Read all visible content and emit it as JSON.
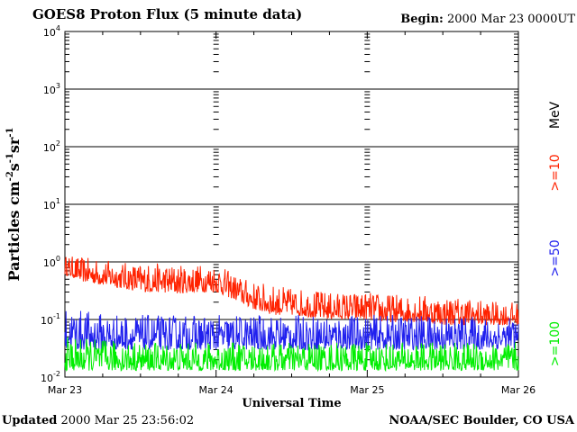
{
  "header": {
    "title": "GOES8 Proton Flux (5 minute data)",
    "begin_label": "Begin:",
    "begin_value": "2000 Mar 23 0000UT"
  },
  "footer": {
    "updated_label": "Updated",
    "updated_value": "2000 Mar 25 23:56:02",
    "credit": "NOAA/SEC Boulder, CO USA"
  },
  "chart_data": {
    "type": "line",
    "xlabel": "Universal Time",
    "ylabel_parts": [
      "Particles cm",
      "-2",
      "s",
      "-1",
      "sr",
      "-1"
    ],
    "y_scale": "log",
    "ylim": [
      0.01,
      10000
    ],
    "y_ticks": [
      {
        "value": 0.01,
        "base": "10",
        "exp": "-2"
      },
      {
        "value": 0.1,
        "base": "10",
        "exp": "-1"
      },
      {
        "value": 1,
        "base": "10",
        "exp": "0"
      },
      {
        "value": 10,
        "base": "10",
        "exp": "1"
      },
      {
        "value": 100,
        "base": "10",
        "exp": "2"
      },
      {
        "value": 1000,
        "base": "10",
        "exp": "3"
      },
      {
        "value": 10000,
        "base": "10",
        "exp": "4"
      }
    ],
    "x_ticks": [
      "Mar 23",
      "Mar 24",
      "Mar 25",
      "Mar 26"
    ],
    "xlim": [
      "2000-03-23 00:00",
      "2000-03-26 00:00"
    ],
    "grid": true,
    "legend": {
      "unit": "MeV",
      "unit_color": "#000000",
      "placement": "right-vertical"
    },
    "series": [
      {
        "name": ">=10",
        "color": "#ff2200",
        "x": [
          "2000-03-23 00:00",
          "2000-03-23 03:00",
          "2000-03-23 06:00",
          "2000-03-23 09:00",
          "2000-03-23 12:00",
          "2000-03-23 15:00",
          "2000-03-23 18:00",
          "2000-03-23 21:00",
          "2000-03-24 00:00",
          "2000-03-24 03:00",
          "2000-03-24 06:00",
          "2000-03-24 09:00",
          "2000-03-24 12:00",
          "2000-03-24 15:00",
          "2000-03-24 18:00",
          "2000-03-24 21:00",
          "2000-03-25 00:00",
          "2000-03-25 03:00",
          "2000-03-25 06:00",
          "2000-03-25 09:00",
          "2000-03-25 12:00",
          "2000-03-25 15:00",
          "2000-03-25 18:00",
          "2000-03-25 21:00",
          "2000-03-26 00:00"
        ],
        "low": [
          0.6,
          0.45,
          0.4,
          0.35,
          0.3,
          0.3,
          0.28,
          0.3,
          0.3,
          0.22,
          0.15,
          0.12,
          0.12,
          0.11,
          0.1,
          0.1,
          0.1,
          0.09,
          0.09,
          0.09,
          0.08,
          0.08,
          0.08,
          0.08,
          0.08
        ],
        "high": [
          1.3,
          1.2,
          1.1,
          1.0,
          0.95,
          0.95,
          0.9,
          0.9,
          0.95,
          0.6,
          0.45,
          0.4,
          0.35,
          0.33,
          0.3,
          0.3,
          0.3,
          0.28,
          0.27,
          0.27,
          0.25,
          0.25,
          0.22,
          0.2,
          0.2
        ]
      },
      {
        "name": ">=50",
        "color": "#2020ee",
        "x": [
          "2000-03-23 00:00",
          "2000-03-23 06:00",
          "2000-03-23 12:00",
          "2000-03-23 18:00",
          "2000-03-24 00:00",
          "2000-03-24 06:00",
          "2000-03-24 12:00",
          "2000-03-24 18:00",
          "2000-03-25 00:00",
          "2000-03-25 06:00",
          "2000-03-25 12:00",
          "2000-03-25 18:00",
          "2000-03-26 00:00"
        ],
        "low": [
          0.03,
          0.03,
          0.03,
          0.03,
          0.03,
          0.03,
          0.03,
          0.03,
          0.03,
          0.03,
          0.03,
          0.03,
          0.03
        ],
        "high": [
          0.16,
          0.13,
          0.12,
          0.12,
          0.12,
          0.12,
          0.12,
          0.12,
          0.12,
          0.12,
          0.12,
          0.11,
          0.11
        ]
      },
      {
        "name": ">=100",
        "color": "#00ee00",
        "x": [
          "2000-03-23 00:00",
          "2000-03-23 06:00",
          "2000-03-23 12:00",
          "2000-03-23 18:00",
          "2000-03-24 00:00",
          "2000-03-24 06:00",
          "2000-03-24 12:00",
          "2000-03-24 18:00",
          "2000-03-25 00:00",
          "2000-03-25 06:00",
          "2000-03-25 12:00",
          "2000-03-25 18:00",
          "2000-03-26 00:00"
        ],
        "low": [
          0.013,
          0.013,
          0.013,
          0.013,
          0.013,
          0.013,
          0.013,
          0.013,
          0.013,
          0.013,
          0.013,
          0.013,
          0.013
        ],
        "high": [
          0.05,
          0.045,
          0.04,
          0.04,
          0.04,
          0.04,
          0.04,
          0.04,
          0.04,
          0.04,
          0.04,
          0.04,
          0.04
        ]
      }
    ]
  }
}
